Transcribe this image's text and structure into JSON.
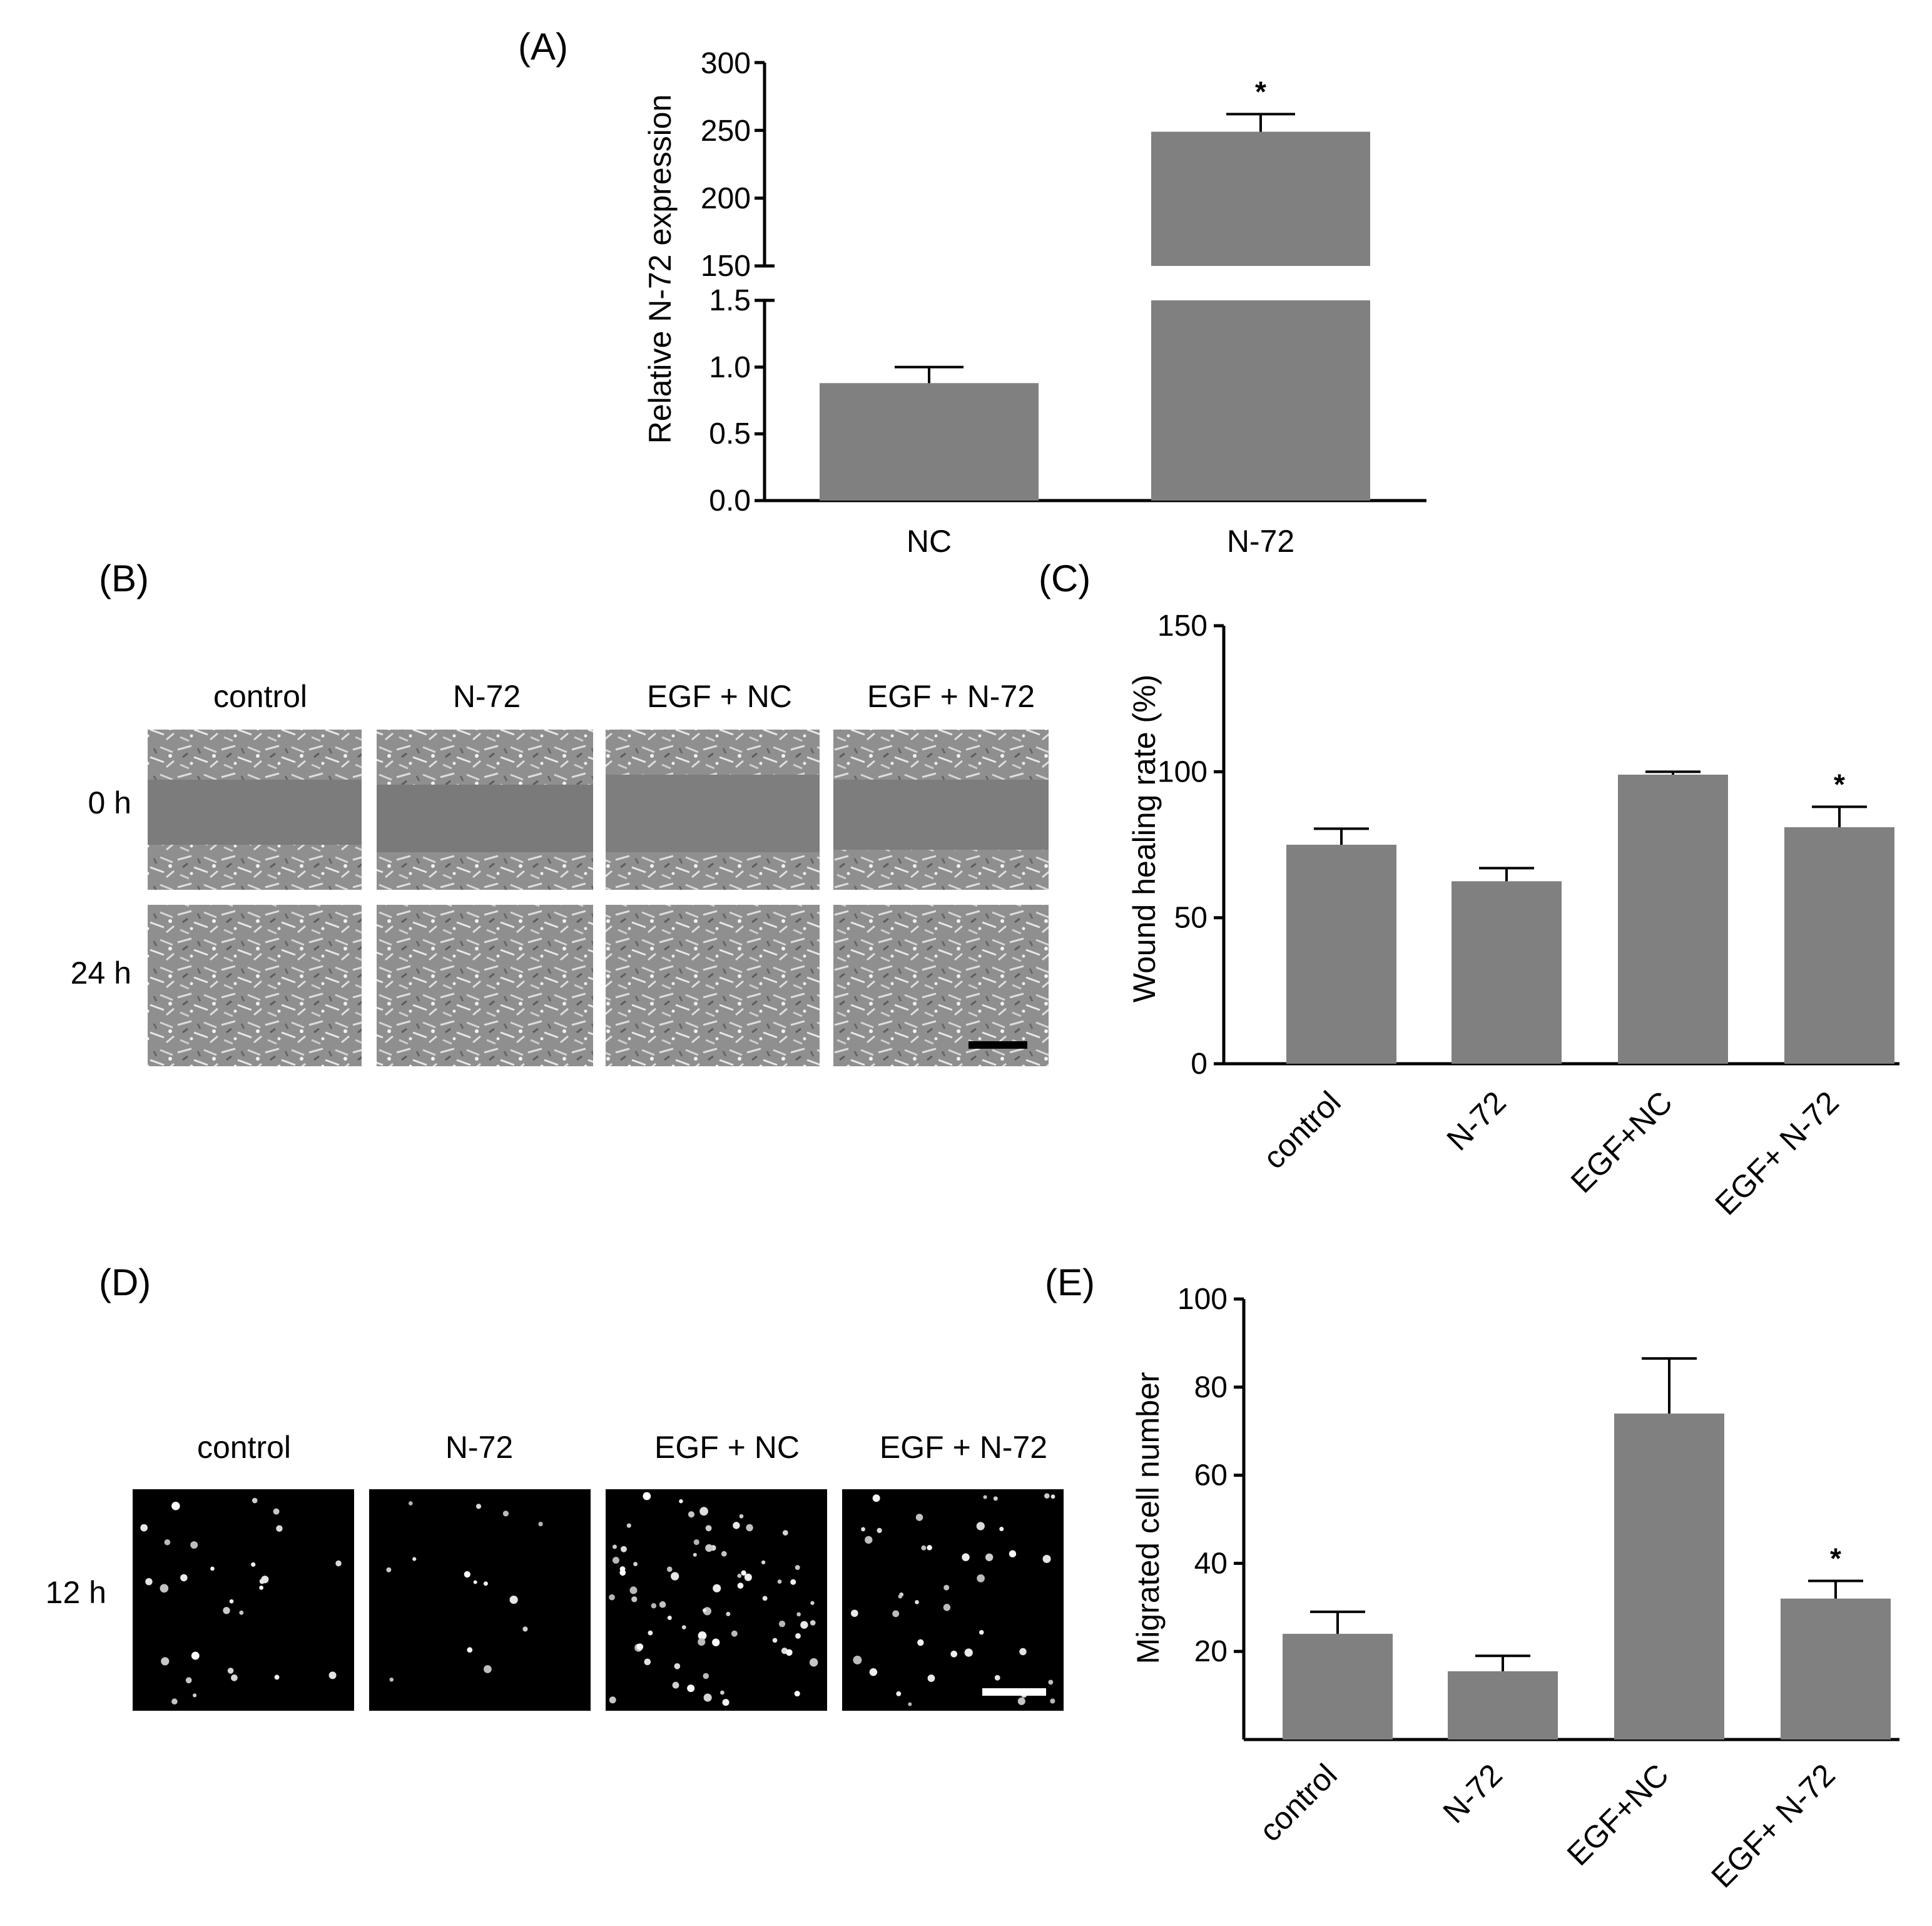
{
  "panels": {
    "a": "(A)",
    "b": "(B)",
    "c": "(C)",
    "d": "(D)",
    "e": "(E)"
  },
  "micrographs_b": {
    "columns": [
      "control",
      "N-72",
      "EGF + NC",
      "EGF + N-72"
    ],
    "rows": [
      "0 h",
      "24 h"
    ],
    "scale_bar": true
  },
  "micrographs_d": {
    "columns": [
      "control",
      "N-72",
      "EGF + NC",
      "EGF + N-72"
    ],
    "rows": [
      "12 h"
    ],
    "scale_bar": true
  },
  "chart_data": [
    {
      "id": "A",
      "type": "bar",
      "categories": [
        "NC",
        "N-72"
      ],
      "values": [
        0.88,
        249
      ],
      "errors": [
        0.12,
        13
      ],
      "significance": [
        "",
        "*"
      ],
      "ylabel": "Relative N-72 expression",
      "broken_axis": true,
      "lower_segment": {
        "ylim": [
          0,
          1.5
        ],
        "ticks": [
          "0.0",
          "0.5",
          "1.0",
          "1.5"
        ]
      },
      "upper_segment": {
        "ylim": [
          150,
          300
        ],
        "ticks": [
          "150",
          "200",
          "250",
          "300"
        ]
      },
      "bar_color": "#808080"
    },
    {
      "id": "C",
      "type": "bar",
      "categories": [
        "control",
        "N-72",
        "EGF+NC",
        "EGF+ N-72"
      ],
      "values": [
        75,
        62.5,
        99,
        81
      ],
      "errors": [
        5.5,
        4.5,
        1,
        7
      ],
      "significance": [
        "",
        "",
        "",
        "*"
      ],
      "ylabel": "Wound healing rate (%)",
      "ylim": [
        0,
        150
      ],
      "yticks": [
        "0",
        "50",
        "100",
        "150"
      ],
      "bar_color": "#808080"
    },
    {
      "id": "E",
      "type": "bar",
      "categories": [
        "control",
        "N-72",
        "EGF+NC",
        "EGF+ N-72"
      ],
      "values": [
        24,
        15.5,
        74,
        32
      ],
      "errors": [
        5,
        3.5,
        12.5,
        4
      ],
      "significance": [
        "",
        "",
        "",
        "*"
      ],
      "ylabel": "Migrated cell number",
      "ylim": [
        0,
        100
      ],
      "yticks": [
        "20",
        "40",
        "60",
        "80",
        "100"
      ],
      "bar_color": "#808080"
    }
  ]
}
